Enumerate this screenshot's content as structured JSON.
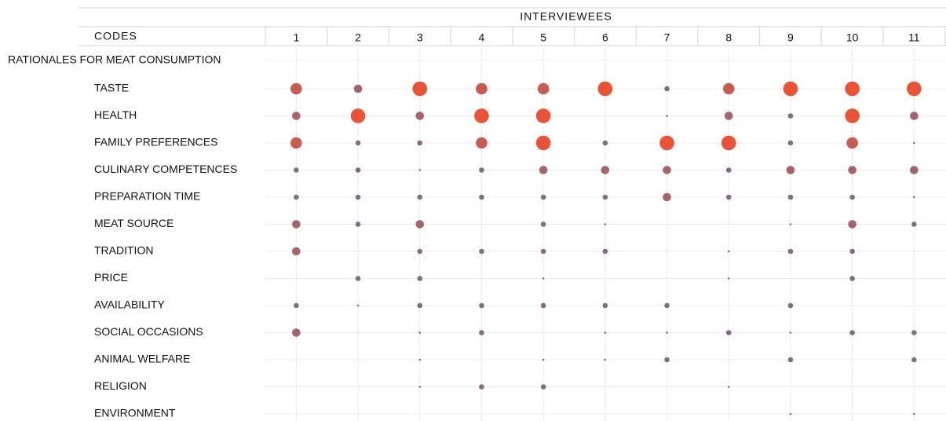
{
  "chart_data": {
    "type": "bubble-matrix",
    "title": "INTERVIEWEES",
    "row_header": "CODES",
    "group_label": "RATIONALES FOR MEAT CONSUMPTION",
    "categories": [
      "1",
      "2",
      "3",
      "4",
      "5",
      "6",
      "7",
      "8",
      "9",
      "10",
      "11"
    ],
    "color_low": "#52669a",
    "color_high": "#e8401f",
    "grid": true,
    "series": [
      {
        "name": "TASTE",
        "values": [
          4,
          3,
          5,
          4,
          4,
          5,
          2,
          4,
          5,
          5,
          5
        ]
      },
      {
        "name": "HEALTH",
        "values": [
          3,
          5,
          3,
          5,
          5,
          null,
          1,
          3,
          2,
          5,
          3
        ]
      },
      {
        "name": "FAMILY PREFERENCES",
        "values": [
          4,
          2,
          2,
          4,
          5,
          2,
          5,
          5,
          2,
          4,
          1
        ]
      },
      {
        "name": "CULINARY COMPETENCES",
        "values": [
          2,
          2,
          1,
          2,
          3,
          3,
          3,
          2,
          3,
          3,
          3
        ]
      },
      {
        "name": "PREPARATION TIME",
        "values": [
          2,
          2,
          2,
          2,
          2,
          2,
          3,
          2,
          2,
          2,
          1
        ]
      },
      {
        "name": "MEAT SOURCE",
        "values": [
          3,
          2,
          3,
          null,
          2,
          1,
          null,
          null,
          1,
          3,
          2
        ]
      },
      {
        "name": "TRADITION",
        "values": [
          3,
          null,
          2,
          2,
          2,
          2,
          null,
          1,
          2,
          2,
          null
        ]
      },
      {
        "name": "PRICE",
        "values": [
          null,
          2,
          2,
          null,
          1,
          null,
          null,
          1,
          null,
          2,
          null
        ]
      },
      {
        "name": "AVAILABILITY",
        "values": [
          2,
          1,
          2,
          2,
          2,
          2,
          2,
          null,
          2,
          null,
          null
        ]
      },
      {
        "name": "SOCIAL OCCASIONS",
        "values": [
          3,
          null,
          1,
          2,
          null,
          1,
          1,
          2,
          1,
          2,
          2
        ]
      },
      {
        "name": "ANIMAL WELFARE",
        "values": [
          null,
          null,
          1,
          null,
          1,
          1,
          2,
          null,
          2,
          null,
          2
        ]
      },
      {
        "name": "RELIGION",
        "values": [
          null,
          null,
          1,
          2,
          2,
          null,
          null,
          1,
          null,
          null,
          null
        ]
      },
      {
        "name": "ENVIRONMENT",
        "values": [
          null,
          null,
          null,
          null,
          null,
          null,
          null,
          null,
          1,
          null,
          1
        ]
      }
    ]
  }
}
